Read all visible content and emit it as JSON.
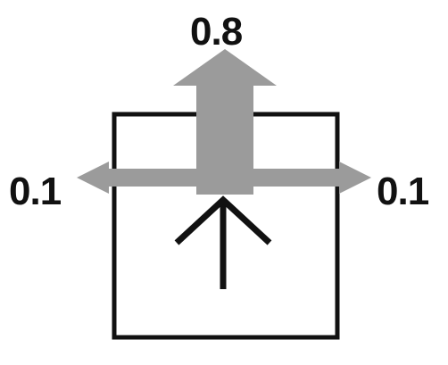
{
  "probabilities": {
    "forward": "0.8",
    "left": "0.1",
    "right": "0.1"
  },
  "icons": {
    "intended_action": "up-arrow-icon",
    "outcome_arrows": "arrow-icon"
  },
  "colors": {
    "outcome_arrow": "#9b9b9b",
    "cell_border": "#111111",
    "intended_arrow": "#111111",
    "label_text": "#111111"
  }
}
